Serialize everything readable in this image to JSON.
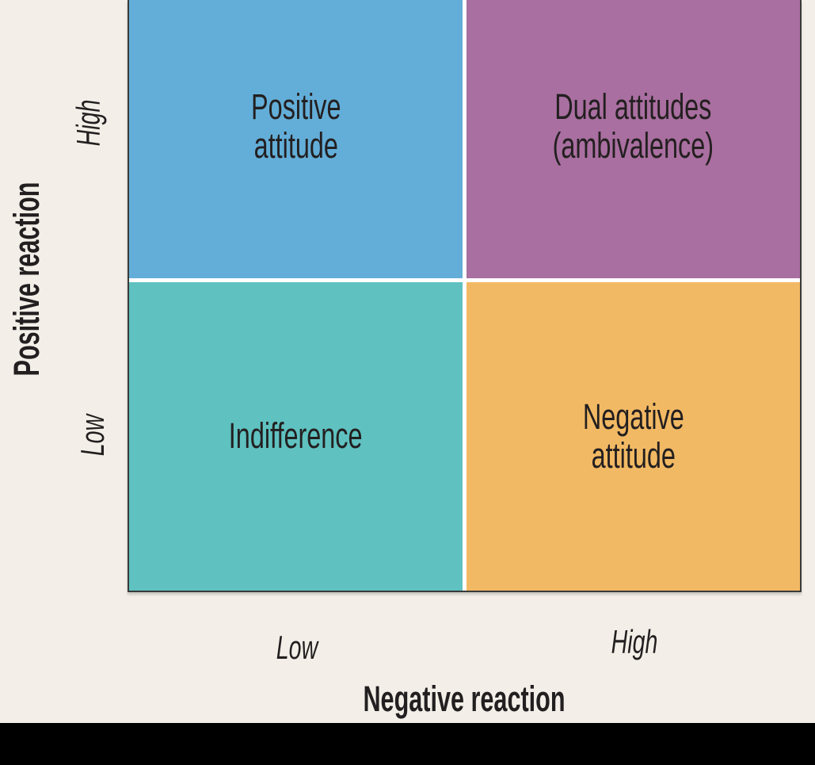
{
  "figure": {
    "background_color": "#f3efe8",
    "text_color": "#231f20",
    "grid_border_color": "#3a3a3a",
    "divider_color": "#ffffff"
  },
  "y_axis": {
    "label": "Positive reaction",
    "tick_high": "High",
    "tick_low": "Low"
  },
  "x_axis": {
    "label": "Negative reaction",
    "tick_low": "Low",
    "tick_high": "High"
  },
  "quadrants": [
    {
      "position": "top-left",
      "positive_reaction": "High",
      "negative_reaction": "Low",
      "label": "Positive attitude",
      "lines": [
        "Positive",
        "attitude"
      ],
      "color": "#63aed8"
    },
    {
      "position": "top-right",
      "positive_reaction": "High",
      "negative_reaction": "High",
      "label": "Dual attitudes (ambivalence)",
      "lines": [
        "Dual attitudes",
        "(ambivalence)"
      ],
      "color": "#a96fa0"
    },
    {
      "position": "bottom-left",
      "positive_reaction": "Low",
      "negative_reaction": "Low",
      "label": "Indifference",
      "lines": [
        "Indifference"
      ],
      "color": "#5fc1c0"
    },
    {
      "position": "bottom-right",
      "positive_reaction": "Low",
      "negative_reaction": "High",
      "label": "Negative attitude",
      "lines": [
        "Negative",
        "attitude"
      ],
      "color": "#f2b964"
    }
  ],
  "footer_bar": {
    "color": "#000000"
  }
}
